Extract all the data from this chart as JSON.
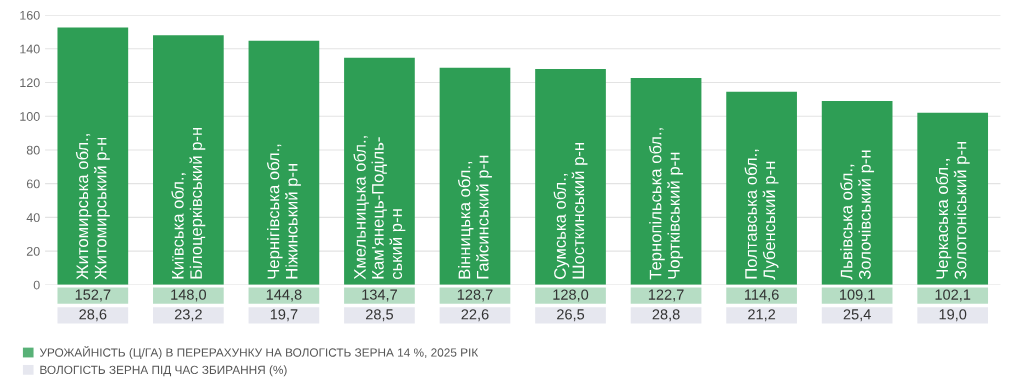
{
  "chart_data": [
    {
      "type": "bar",
      "categories": [
        "Житомирська обл.,\nЖитомирський р-н",
        "Київська обл.,\nБілоцерківський р-н",
        "Чернігівська обл.,\nНіжинський р-н",
        "Хмельницька обл.,\nКам'янець-Поділь-\nський р-н",
        "Вінницька обл.,\nГайсинський р-н",
        "Сумська обл.,\nШосткинський р-н",
        "Тернопільська обл.,\nЧортківський р-н",
        "Полтавська обл.,\nЛубенський р-н",
        "Львівська обл.,\nЗолочівський р-н",
        "Черкаська обл.,\nЗолотоніський р-н"
      ],
      "series": [
        {
          "name": "УРОЖАЙНІСТЬ (Ц/ГА) В ПЕРЕРАХУНКУ НА ВОЛОГІСТЬ ЗЕРНА 14 %, 2025 РІК",
          "color": "#2e9e55",
          "values": [
            152.7,
            148.0,
            144.8,
            134.7,
            128.7,
            128.0,
            122.7,
            114.6,
            109.1,
            102.1
          ],
          "value_labels": [
            "152,7",
            "148,0",
            "144,8",
            "134,7",
            "128,7",
            "128,0",
            "122,7",
            "114,6",
            "109,1",
            "102,1"
          ]
        }
      ],
      "ylim": [
        0,
        160
      ],
      "yticks": [
        0,
        20,
        40,
        60,
        80,
        100,
        120,
        140,
        160
      ],
      "grid": "y",
      "legend": "bottom left"
    },
    {
      "type": "other",
      "series": [
        {
          "name": "ВОЛОГІСТЬ ЗЕРНА ПІД ЧАС ЗБИРАННЯ (%)",
          "color": "#e6e7ef",
          "values": [
            28.6,
            23.2,
            19.7,
            28.5,
            22.6,
            26.5,
            28.8,
            21.2,
            25.4,
            19.0
          ],
          "value_labels": [
            "28,6",
            "23,2",
            "19,7",
            "28,5",
            "22,6",
            "26,5",
            "28,8",
            "21,2",
            "25,4",
            "19,0"
          ]
        }
      ]
    }
  ]
}
